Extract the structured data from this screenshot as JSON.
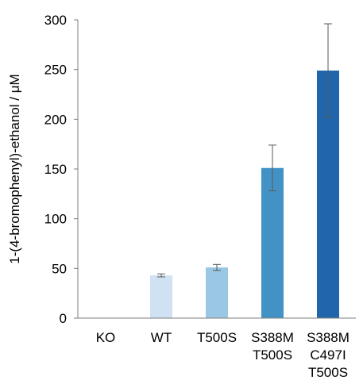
{
  "chart_data": {
    "type": "bar",
    "title": "",
    "xlabel": "",
    "ylabel": "1-(4-bromophenyl)-ethanol / μM",
    "ylim": [
      0,
      300
    ],
    "yticks": [
      0,
      50,
      100,
      150,
      200,
      250,
      300
    ],
    "grid": false,
    "legend": "none",
    "categories": [
      [
        "KO"
      ],
      [
        "WT"
      ],
      [
        "T500S"
      ],
      [
        "S388M",
        "T500S"
      ],
      [
        "S388M",
        "C497I",
        "T500S"
      ]
    ],
    "values": [
      0,
      43,
      51,
      151,
      249
    ],
    "errors": [
      0,
      1.5,
      3,
      23,
      47
    ],
    "colors": [
      "#cfe1f2",
      "#cfe1f2",
      "#9ac8e4",
      "#4292c6",
      "#2166ac"
    ]
  }
}
